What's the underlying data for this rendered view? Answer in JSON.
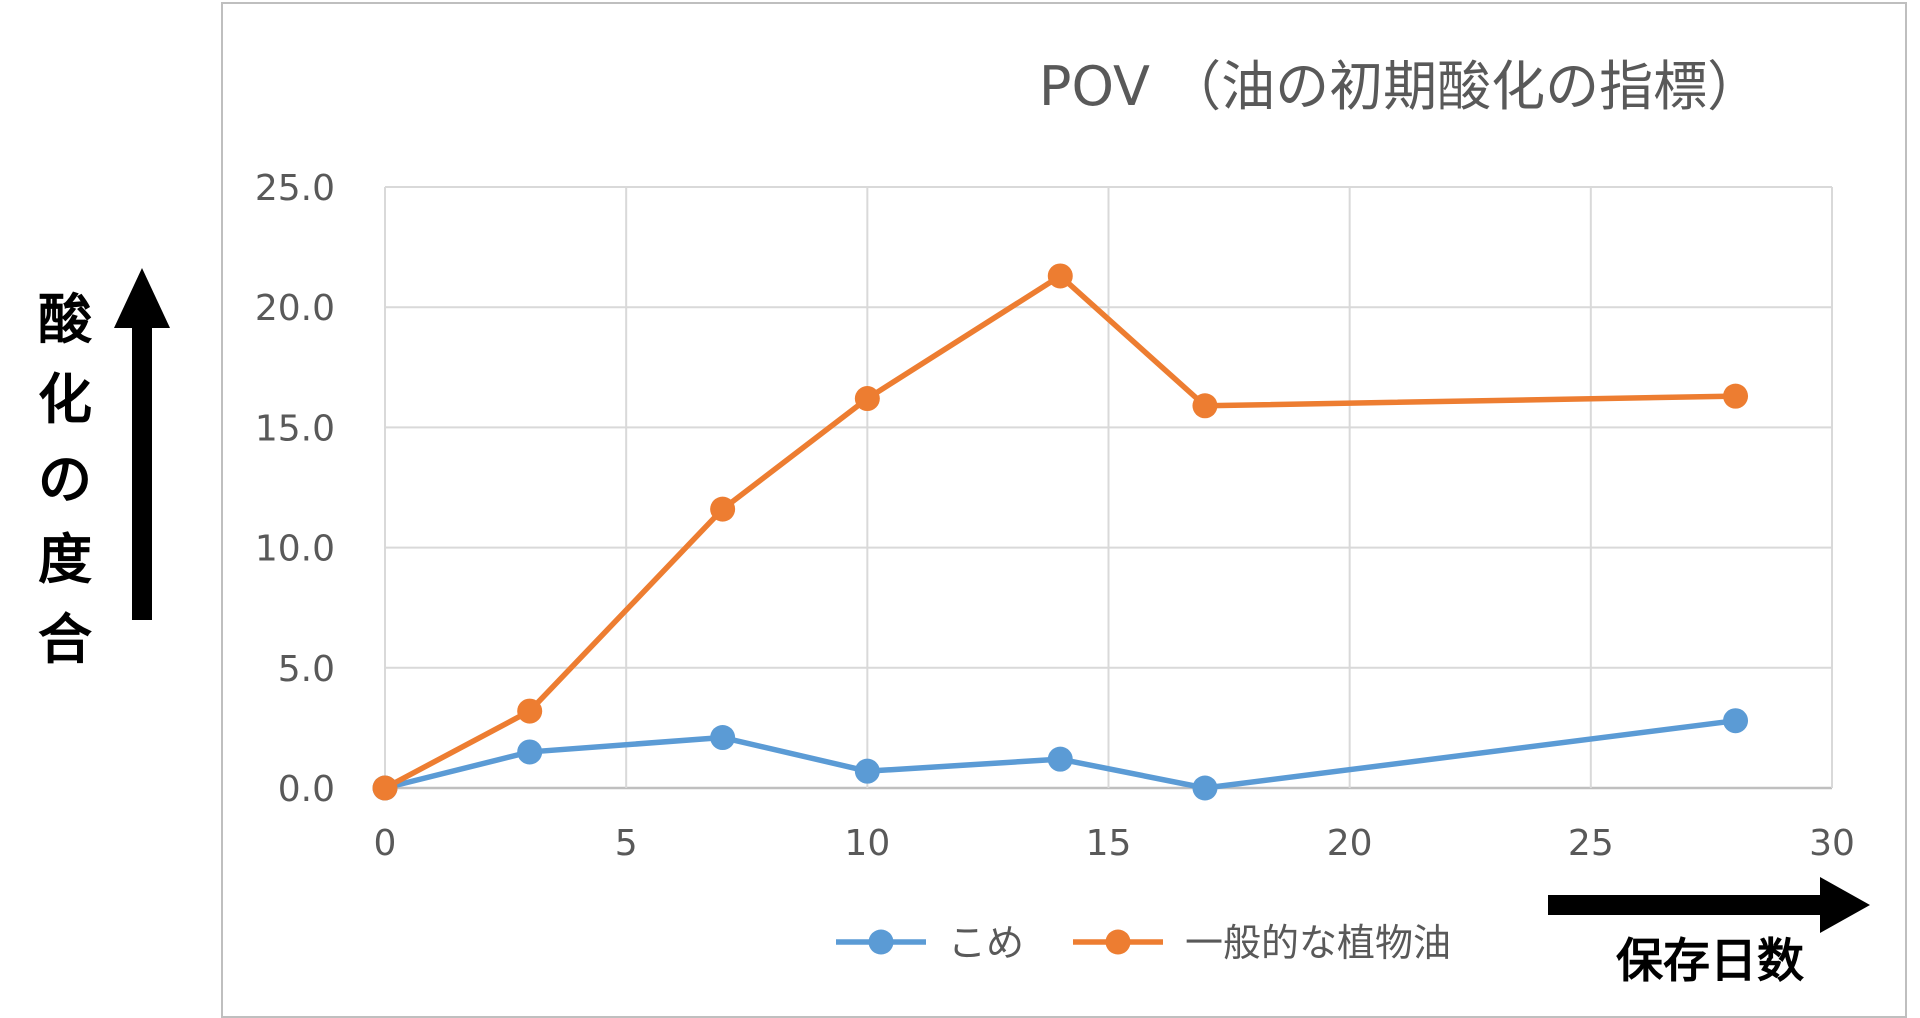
{
  "annotations": {
    "y_caption": "酸化の度合",
    "x_caption": "保存日数"
  },
  "chart_data": {
    "type": "line",
    "title": "POV （油の初期酸化の指標）",
    "xlabel": "",
    "ylabel": "",
    "xlim": [
      0,
      30
    ],
    "ylim": [
      0,
      25
    ],
    "x_ticks": [
      "0",
      "5",
      "10",
      "15",
      "20",
      "25",
      "30"
    ],
    "y_ticks": [
      "0.0",
      "5.0",
      "10.0",
      "15.0",
      "20.0",
      "25.0"
    ],
    "x_tick_values": [
      0,
      5,
      10,
      15,
      20,
      25,
      30
    ],
    "y_tick_values": [
      0,
      5,
      10,
      15,
      20,
      25
    ],
    "grid": true,
    "legend_position": "bottom",
    "series": [
      {
        "name": "こめ",
        "color": "#5b9bd5",
        "x": [
          0,
          3,
          7,
          10,
          14,
          17,
          28
        ],
        "values": [
          0.0,
          1.5,
          2.1,
          0.7,
          1.2,
          0.0,
          2.8
        ]
      },
      {
        "name": "一般的な植物油",
        "color": "#ed7d31",
        "x": [
          0,
          3,
          7,
          10,
          14,
          17,
          28
        ],
        "values": [
          0.0,
          3.2,
          11.6,
          16.2,
          21.3,
          15.9,
          16.3
        ]
      }
    ]
  }
}
